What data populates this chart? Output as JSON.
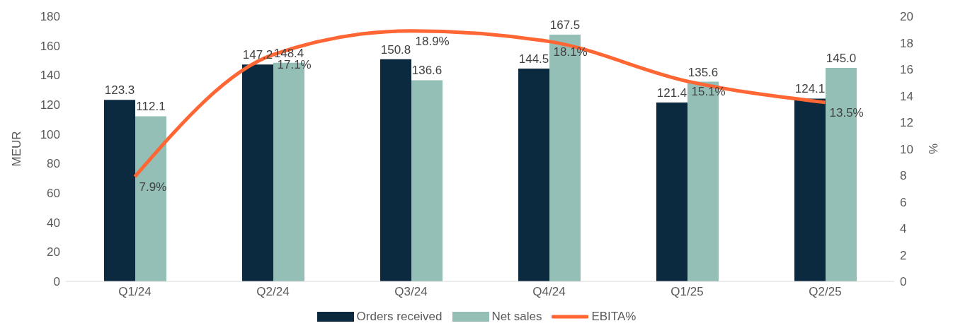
{
  "chart_data": {
    "type": "bar",
    "categories": [
      "Q1/24",
      "Q2/24",
      "Q3/24",
      "Q4/24",
      "Q1/25",
      "Q2/25"
    ],
    "series": [
      {
        "name": "Orders received",
        "color": "#0b2a3f",
        "values": [
          123.3,
          147.2,
          150.8,
          144.5,
          121.4,
          124.1
        ],
        "value_labels": [
          "123.3",
          "147.2",
          "150.8",
          "144.5",
          "121.4",
          "124.1"
        ]
      },
      {
        "name": "Net sales",
        "color": "#93bfb7",
        "values": [
          112.1,
          148.4,
          136.6,
          167.5,
          135.6,
          145.0
        ],
        "value_labels": [
          "112.1",
          "148.4",
          "136.6",
          "167.5",
          "135.6",
          "145.0"
        ]
      },
      {
        "name": "EBITA%",
        "type": "line",
        "axis": "y2",
        "color": "#ff6633",
        "values": [
          7.9,
          17.1,
          18.9,
          18.1,
          15.1,
          13.5
        ],
        "value_labels": [
          "7.9%",
          "17.1%",
          "18.9%",
          "18.1%",
          "15.1%",
          "13.5%"
        ]
      }
    ],
    "ylabel": "MEUR",
    "y2label": "%",
    "ylim": [
      0,
      180
    ],
    "yticks": [
      0,
      20,
      40,
      60,
      80,
      100,
      120,
      140,
      160,
      180
    ],
    "y2lim": [
      0,
      20
    ],
    "y2ticks": [
      0,
      2,
      4,
      6,
      8,
      10,
      12,
      14,
      16,
      18,
      20
    ],
    "grid": false,
    "legend": "bottom",
    "marker": "none",
    "line_style": "solid"
  }
}
